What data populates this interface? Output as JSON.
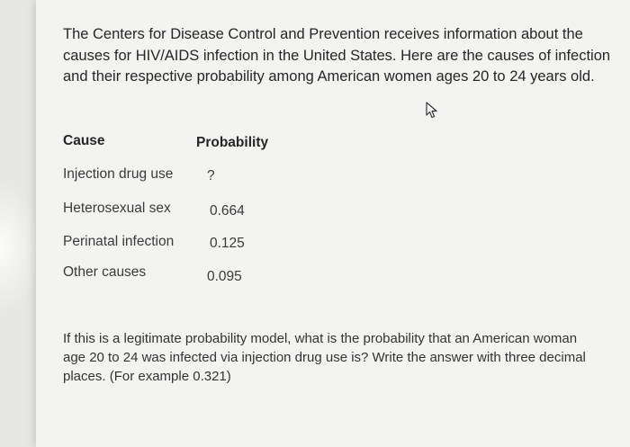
{
  "intro_text": "The Centers for Disease Control and Prevention receives information about the causes for HIV/AIDS infection in the United States. Here are the causes of infection and their respective probability among American women ages 20 to 24 years old.",
  "table": {
    "headers": [
      "Cause",
      "Probability"
    ],
    "rows": [
      {
        "cause": "Injection drug use",
        "probability": "?"
      },
      {
        "cause": "Heterosexual sex",
        "probability": "0.664"
      },
      {
        "cause": "Perinatal infection",
        "probability": "0.125"
      },
      {
        "cause": "Other causes",
        "probability": "0.095"
      }
    ]
  },
  "question_text": "If this is a legitimate probability model,  what is the probability that an American woman age 20 to 24 was infected via injection drug use is? Write the answer with three decimal places. (For example 0.321)",
  "icons": {
    "cursor": "mouse-pointer-icon"
  }
}
